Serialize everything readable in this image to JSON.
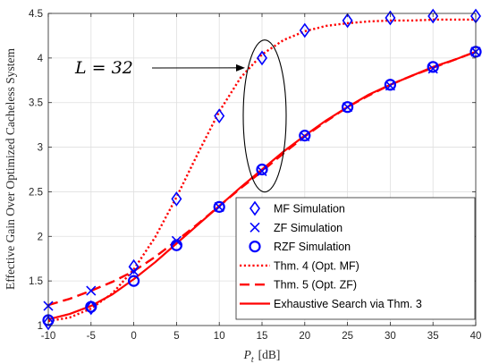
{
  "chart_data": {
    "type": "line",
    "xlabel": "P_t [dB]",
    "xlabel_main": "P",
    "xlabel_sub": "t",
    "xlabel_unit": "[dB]",
    "ylabel": "Effective Gain Over Optimized Cacheless System",
    "xlim": [
      -10,
      40
    ],
    "ylim": [
      1,
      4.5
    ],
    "x_ticks": [
      -10,
      -5,
      0,
      5,
      10,
      15,
      20,
      25,
      30,
      35,
      40
    ],
    "y_ticks": [
      1,
      1.5,
      2,
      2.5,
      3,
      3.5,
      4,
      4.5
    ],
    "grid": true,
    "legend_position": "bottom-right",
    "annotation": {
      "text": "L = 32",
      "arrow_target": [
        15,
        4.0
      ]
    },
    "series": [
      {
        "name": "MF Simulation",
        "style": "marker",
        "marker": "diamond",
        "color": "#0000ff",
        "x": [
          -10,
          -5,
          0,
          5,
          10,
          15,
          20,
          25,
          30,
          35,
          40
        ],
        "y": [
          1.03,
          1.2,
          1.66,
          2.42,
          3.35,
          4.0,
          4.31,
          4.42,
          4.45,
          4.47,
          4.47
        ]
      },
      {
        "name": "ZF Simulation",
        "style": "marker",
        "marker": "x",
        "color": "#0000ff",
        "x": [
          -10,
          -5,
          0,
          5,
          10,
          15,
          20,
          25,
          30,
          35,
          40
        ],
        "y": [
          1.22,
          1.39,
          1.61,
          1.95,
          2.33,
          2.73,
          3.12,
          3.45,
          3.69,
          3.88,
          4.07
        ]
      },
      {
        "name": "RZF Simulation",
        "style": "marker",
        "marker": "circle",
        "color": "#0000ff",
        "x": [
          -10,
          -5,
          0,
          5,
          10,
          15,
          20,
          25,
          30,
          35,
          40
        ],
        "y": [
          1.06,
          1.21,
          1.5,
          1.9,
          2.33,
          2.75,
          3.13,
          3.45,
          3.7,
          3.9,
          4.07
        ]
      },
      {
        "name": "Thm. 4 (Opt. MF)",
        "style": "dotted",
        "color": "#ff0000",
        "x": [
          -10,
          -7.5,
          -5,
          -2.5,
          0,
          2.5,
          5,
          7.5,
          10,
          12.5,
          15,
          17.5,
          20,
          22.5,
          25,
          27.5,
          30,
          32.5,
          35,
          37.5,
          40
        ],
        "y": [
          1.05,
          1.09,
          1.19,
          1.36,
          1.63,
          1.99,
          2.44,
          2.93,
          3.4,
          3.78,
          4.04,
          4.2,
          4.3,
          4.36,
          4.39,
          4.41,
          4.42,
          4.42,
          4.43,
          4.43,
          4.43
        ]
      },
      {
        "name": "Thm. 5 (Opt. ZF)",
        "style": "dashed",
        "color": "#ff0000",
        "x": [
          -10,
          -7.5,
          -5,
          -2.5,
          0,
          2.5,
          5,
          7.5,
          10,
          12.5,
          15,
          17.5,
          20,
          22.5,
          25,
          27.5,
          30,
          32.5,
          35,
          37.5,
          40
        ],
        "y": [
          1.23,
          1.3,
          1.39,
          1.49,
          1.61,
          1.77,
          1.95,
          2.14,
          2.34,
          2.54,
          2.73,
          2.93,
          3.12,
          3.29,
          3.45,
          3.58,
          3.7,
          3.8,
          3.89,
          3.98,
          4.07
        ]
      },
      {
        "name": "Exhaustive Search via Thm. 3",
        "style": "solid",
        "color": "#ff0000",
        "x": [
          -10,
          -7.5,
          -5,
          -2.5,
          0,
          2.5,
          5,
          7.5,
          10,
          12.5,
          15,
          17.5,
          20,
          22.5,
          25,
          27.5,
          30,
          32.5,
          35,
          37.5,
          40
        ],
        "y": [
          1.07,
          1.13,
          1.22,
          1.35,
          1.52,
          1.71,
          1.92,
          2.13,
          2.34,
          2.55,
          2.75,
          2.95,
          3.13,
          3.3,
          3.45,
          3.59,
          3.7,
          3.8,
          3.9,
          3.98,
          4.07
        ]
      }
    ]
  }
}
